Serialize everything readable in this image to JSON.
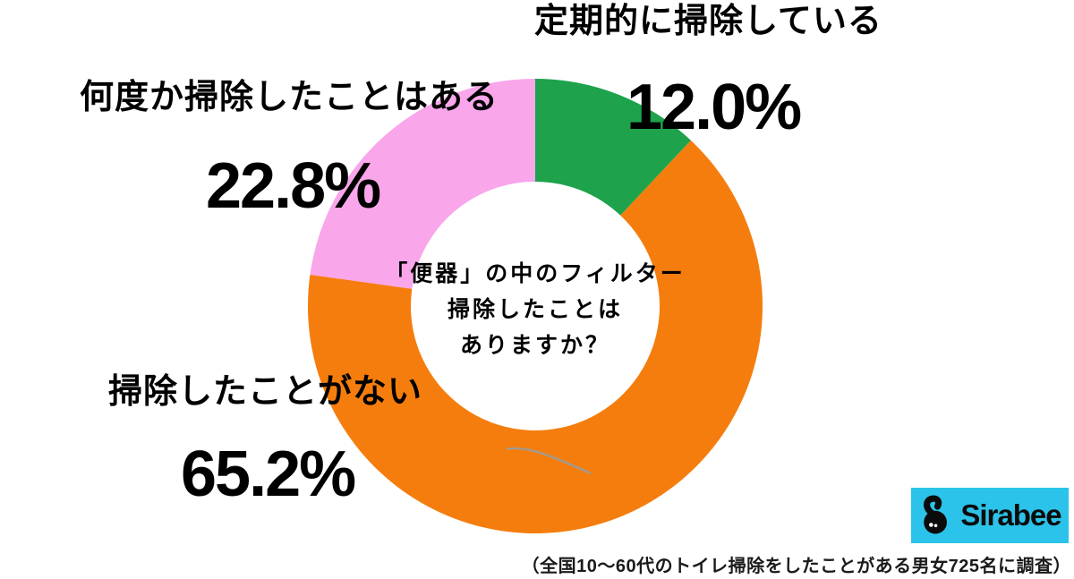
{
  "chart_data": {
    "type": "pie",
    "donut": true,
    "direction": "clockwise",
    "start_angle_deg": 0,
    "title": "",
    "segments": [
      {
        "label": "定期的に掃除している",
        "value": 12.0,
        "value_label": "12.0%",
        "color": "#1ea24b"
      },
      {
        "label": "掃除したことがない",
        "value": 65.2,
        "value_label": "65.2%",
        "color": "#f57d0d"
      },
      {
        "label": "何度か掃除したことはある",
        "value": 22.8,
        "value_label": "22.8%",
        "color": "#f9a6eb"
      }
    ],
    "center_text": {
      "line1": "「便器」の中のフィルター",
      "line2": "掃除したことは",
      "line3": "ありますか？"
    },
    "legend_position": "labels-around-chart",
    "background": "#ffffff"
  },
  "caption": {
    "text": "（全国10〜60代のトイレ掃除をしたことがある男女725名に調査）"
  },
  "logo": {
    "brand": "Sirabee",
    "bg_color": "#2bc3e9"
  }
}
